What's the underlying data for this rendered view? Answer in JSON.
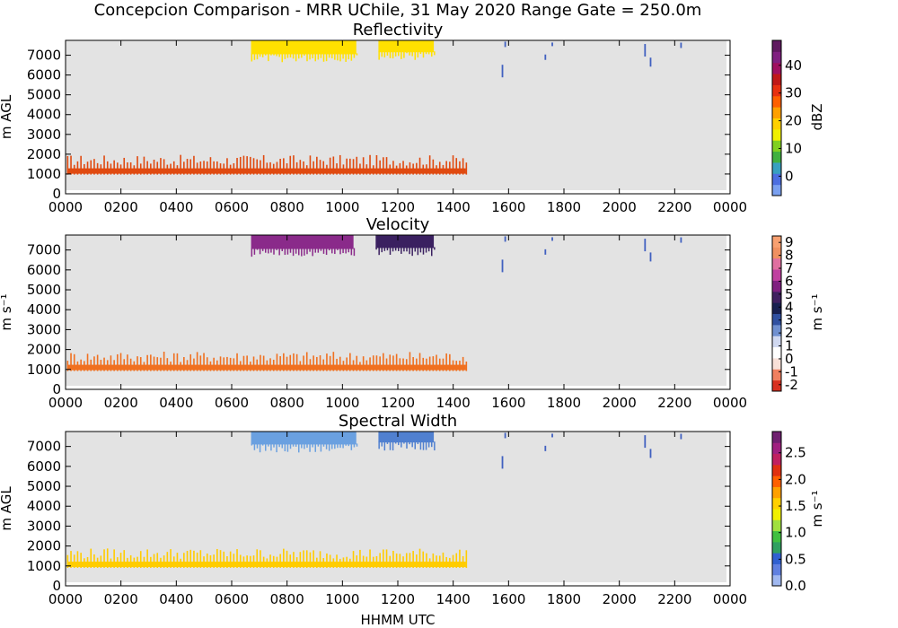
{
  "title": "Concepcion Comparison - MRR UChile, 31 May 2020 Range Gate = 250.0m",
  "x_axis_label": "HHMM UTC",
  "chart_data": [
    {
      "type": "heatmap",
      "title": "Reflectivity",
      "ylabel": "m AGL",
      "colorbar_label": "dBZ",
      "x_ticks": [
        "0000",
        "0200",
        "0400",
        "0600",
        "0800",
        "1000",
        "1200",
        "1400",
        "1600",
        "1800",
        "2000",
        "2200",
        "0000"
      ],
      "y_ticks": [
        0,
        1000,
        2000,
        3000,
        4000,
        5000,
        6000,
        7000
      ],
      "ylim": [
        0,
        7750
      ],
      "colorbar_ticks": [
        "0",
        "10",
        "20",
        "30",
        "40"
      ],
      "colorbar_range": [
        -7,
        49
      ],
      "features": [
        {
          "kind": "band",
          "hour_start": 0.05,
          "hour_end": 14.45,
          "alt": 1150,
          "color": "#e04a10"
        },
        {
          "kind": "cap",
          "hour_start": 6.7,
          "hour_end": 10.5,
          "alt_top": 7750,
          "alt_bottom": 7050,
          "color": "#ffe000"
        },
        {
          "kind": "cap",
          "hour_start": 11.3,
          "hour_end": 13.3,
          "alt_top": 7750,
          "alt_bottom": 7150,
          "color": "#ffe000"
        }
      ]
    },
    {
      "type": "heatmap",
      "title": "Velocity",
      "ylabel": "m s⁻¹",
      "colorbar_label": "m s⁻¹",
      "x_ticks": [
        "0000",
        "0200",
        "0400",
        "0600",
        "0800",
        "1000",
        "1200",
        "1400",
        "1600",
        "1800",
        "2000",
        "2200",
        "0000"
      ],
      "y_ticks": [
        0,
        1000,
        2000,
        3000,
        4000,
        5000,
        6000,
        7000
      ],
      "ylim": [
        0,
        7750
      ],
      "colorbar_ticks": [
        "9",
        "8",
        "7",
        "6",
        "5",
        "4",
        "3",
        "2",
        "1",
        "0",
        "-1",
        "-2"
      ],
      "colorbar_range": [
        -2.5,
        9.5
      ],
      "features": [
        {
          "kind": "band",
          "hour_start": 0.05,
          "hour_end": 14.45,
          "alt": 1100,
          "color": "#f07020"
        },
        {
          "kind": "cap",
          "hour_start": 6.7,
          "hour_end": 10.4,
          "alt_top": 7750,
          "alt_bottom": 7050,
          "color": "#8a2a8a"
        },
        {
          "kind": "cap",
          "hour_start": 11.2,
          "hour_end": 13.3,
          "alt_top": 7750,
          "alt_bottom": 7100,
          "color": "#3a2060"
        }
      ]
    },
    {
      "type": "heatmap",
      "title": "Spectral Width",
      "ylabel": "m AGL",
      "colorbar_label": "m s⁻¹",
      "x_ticks": [
        "0000",
        "0200",
        "0400",
        "0600",
        "0800",
        "1000",
        "1200",
        "1400",
        "1600",
        "1800",
        "2000",
        "2200",
        "0000"
      ],
      "y_ticks": [
        0,
        1000,
        2000,
        3000,
        4000,
        5000,
        6000,
        7000
      ],
      "ylim": [
        0,
        7750
      ],
      "colorbar_ticks": [
        "0.0",
        "0.5",
        "1.0",
        "1.5",
        "2.0",
        "2.5"
      ],
      "colorbar_range": [
        0,
        2.9
      ],
      "features": [
        {
          "kind": "band",
          "hour_start": 0.05,
          "hour_end": 14.45,
          "alt": 1080,
          "color": "#ffcc00"
        },
        {
          "kind": "cap",
          "hour_start": 6.7,
          "hour_end": 10.5,
          "alt_top": 7750,
          "alt_bottom": 7100,
          "color": "#6aa0e0"
        },
        {
          "kind": "cap",
          "hour_start": 11.3,
          "hour_end": 13.3,
          "alt_top": 7750,
          "alt_bottom": 7200,
          "color": "#5080d0"
        }
      ]
    }
  ]
}
